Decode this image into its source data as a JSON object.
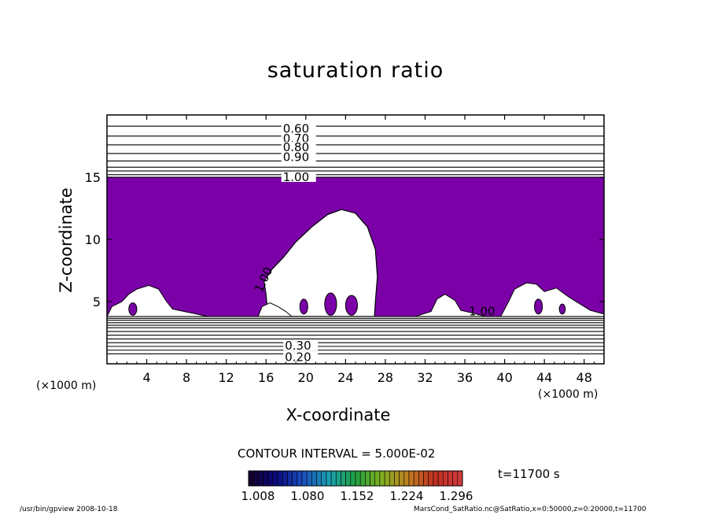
{
  "chart_data": {
    "type": "heatmap",
    "title": "saturation ratio",
    "xlabel": "X-coordinate",
    "ylabel": "Z-coordinate",
    "x_unit_left": "(×1000 m)",
    "x_unit_right": "(×1000 m)",
    "xlim": [
      0,
      50
    ],
    "ylim": [
      0,
      20
    ],
    "x_ticks": [
      4,
      8,
      12,
      16,
      20,
      24,
      28,
      32,
      36,
      40,
      44,
      48
    ],
    "y_ticks": [
      5,
      10,
      15
    ],
    "contour_labels_upper": [
      "0.60",
      "0.70",
      "0.80",
      "0.90",
      "1.00"
    ],
    "contour_labels_lower": [
      "0.20",
      "0.30",
      "1.00",
      "1.00"
    ],
    "upper_contour_levels": [
      19.1,
      18.3,
      17.6,
      16.9,
      16.3,
      15.8,
      15.5,
      15.2,
      15.0
    ],
    "lower_contour_levels": [
      3.8,
      3.65,
      3.5,
      3.3,
      3.1,
      2.9,
      2.6,
      2.3,
      2.0,
      1.7,
      1.4,
      1.1,
      0.8
    ],
    "saturated_band": {
      "z_bottom": 3.8,
      "z_top": 15.0,
      "fill": "#7b00a8"
    },
    "cloud_outline": [
      [
        16.2,
        3.8
      ],
      [
        16.0,
        5.6
      ],
      [
        15.8,
        6.6
      ],
      [
        16.6,
        7.6
      ],
      [
        17.8,
        8.6
      ],
      [
        19.0,
        9.8
      ],
      [
        20.6,
        11.0
      ],
      [
        22.2,
        12.0
      ],
      [
        23.6,
        12.4
      ],
      [
        25.0,
        12.1
      ],
      [
        26.2,
        11.0
      ],
      [
        27.0,
        9.2
      ],
      [
        27.2,
        7.0
      ],
      [
        27.0,
        5.0
      ],
      [
        26.9,
        3.8
      ]
    ],
    "contour_interval": "CONTOUR INTERVAL = 5.000E-02",
    "colorbar_ticks": [
      "1.008",
      "1.080",
      "1.152",
      "1.224",
      "1.296"
    ],
    "colorbar_colors": [
      "#150030",
      "#0a0a80",
      "#1a4fc0",
      "#1a9fb0",
      "#20a040",
      "#80b020",
      "#c08020",
      "#c03020",
      "#d03a3a"
    ],
    "time_label": "t=11700 s",
    "footer_left": "/usr/bin/gpview   2008-10-18",
    "footer_right": "MarsCond_SatRatio.nc@SatRatio,x=0:50000,z=0:20000,t=11700"
  }
}
